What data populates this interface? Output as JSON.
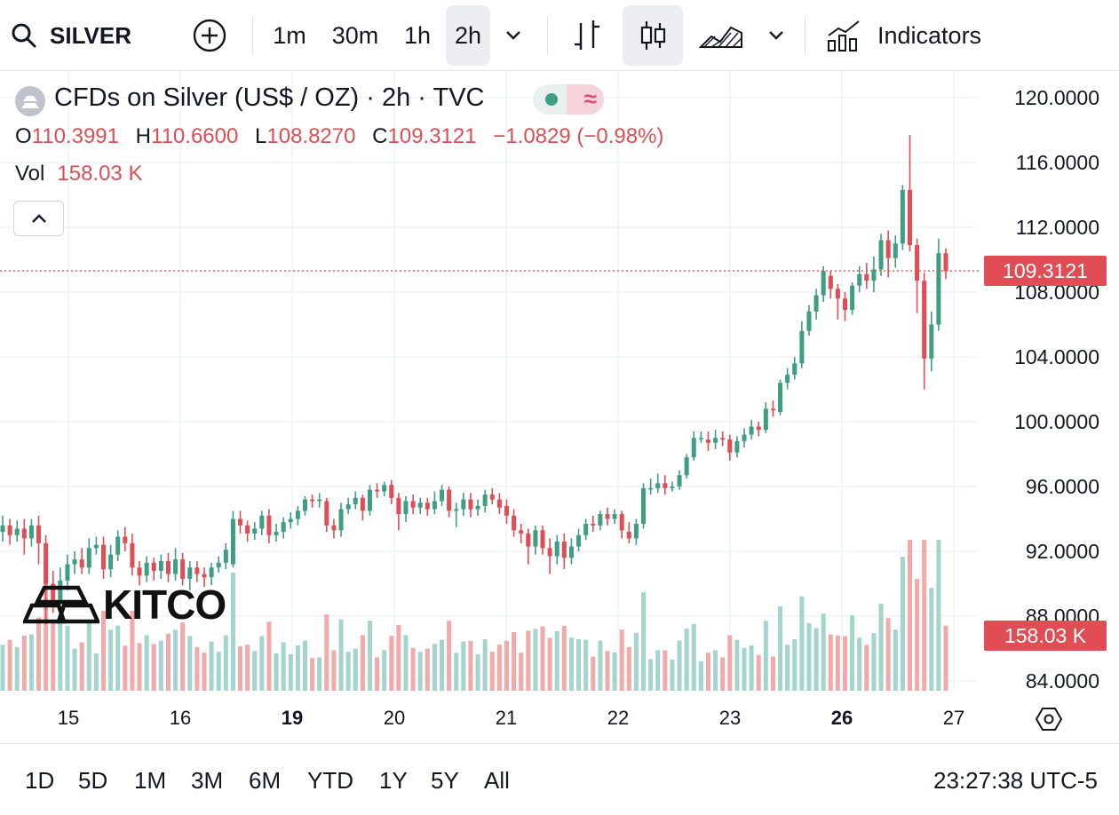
{
  "toolbar": {
    "symbol": "SILVER",
    "intervals": [
      "1m",
      "30m",
      "1h",
      "2h"
    ],
    "active_interval": "2h",
    "indicators_label": "Indicators"
  },
  "legend": {
    "title": "CFDs on Silver (US$ / OZ) · 2h · TVC",
    "open_label": "O",
    "open": "110.3991",
    "high_label": "H",
    "high": "110.6600",
    "low_label": "L",
    "low": "108.8270",
    "close_label": "C",
    "close": "109.3121",
    "change": "−1.0829 (−0.98%)",
    "vol_label": "Vol",
    "vol": "158.03 K"
  },
  "price_axis": {
    "labels": [
      "120.0000",
      "116.0000",
      "112.0000",
      "108.0000",
      "104.0000",
      "100.0000",
      "96.0000",
      "92.0000",
      "88.0000",
      "84.0000"
    ],
    "current_price": "109.3121",
    "current_volume": "158.03 K"
  },
  "time_axis": {
    "labels": [
      {
        "text": "15",
        "bold": false
      },
      {
        "text": "16",
        "bold": false
      },
      {
        "text": "19",
        "bold": true
      },
      {
        "text": "20",
        "bold": false
      },
      {
        "text": "21",
        "bold": false
      },
      {
        "text": "22",
        "bold": false
      },
      {
        "text": "23",
        "bold": false
      },
      {
        "text": "26",
        "bold": true
      },
      {
        "text": "27",
        "bold": false
      }
    ]
  },
  "watermark": "KITCO",
  "bottom_bar": {
    "ranges": [
      "1D",
      "5D",
      "1M",
      "3M",
      "6M",
      "YTD",
      "1Y",
      "5Y",
      "All"
    ],
    "clock": "23:27:38 UTC-5"
  },
  "colors": {
    "up": "#3e9d83",
    "down": "#e04d54",
    "up_vol": "#a3d5cc",
    "down_vol": "#f1a9a9"
  },
  "chart_data": {
    "type": "candlestick",
    "title": "CFDs on Silver (US$ / OZ) · 2h · TVC",
    "ylim": [
      83.5,
      121
    ],
    "x_ticks": [
      "15",
      "16",
      "19",
      "20",
      "21",
      "22",
      "23",
      "26",
      "27"
    ],
    "candles": [
      {
        "o": 93.2,
        "c": 93.6,
        "h": 94.2,
        "l": 92.6
      },
      {
        "o": 93.6,
        "c": 93.0,
        "h": 94.0,
        "l": 92.4
      },
      {
        "o": 93.0,
        "c": 93.4,
        "h": 93.9,
        "l": 92.6
      },
      {
        "o": 93.4,
        "c": 92.8,
        "h": 94.0,
        "l": 91.8
      },
      {
        "o": 92.8,
        "c": 93.6,
        "h": 94.0,
        "l": 92.3
      },
      {
        "o": 93.6,
        "c": 92.5,
        "h": 94.2,
        "l": 91.2
      },
      {
        "o": 92.5,
        "c": 90.0,
        "h": 93.0,
        "l": 87.5
      },
      {
        "o": 90.0,
        "c": 89.0,
        "h": 90.8,
        "l": 88.2
      },
      {
        "o": 89.0,
        "c": 90.2,
        "h": 91.0,
        "l": 88.5
      },
      {
        "o": 90.2,
        "c": 91.2,
        "h": 91.8,
        "l": 89.6
      },
      {
        "o": 91.2,
        "c": 91.5,
        "h": 92.0,
        "l": 90.6
      },
      {
        "o": 91.5,
        "c": 91.0,
        "h": 92.2,
        "l": 90.6
      },
      {
        "o": 91.0,
        "c": 92.2,
        "h": 92.8,
        "l": 90.6
      },
      {
        "o": 92.2,
        "c": 92.4,
        "h": 92.9,
        "l": 91.8
      },
      {
        "o": 92.4,
        "c": 90.9,
        "h": 92.9,
        "l": 90.3
      },
      {
        "o": 90.9,
        "c": 91.8,
        "h": 92.4,
        "l": 90.4
      },
      {
        "o": 91.8,
        "c": 92.9,
        "h": 93.3,
        "l": 91.4
      },
      {
        "o": 92.9,
        "c": 92.5,
        "h": 93.5,
        "l": 92.0
      },
      {
        "o": 92.5,
        "c": 91.0,
        "h": 93.1,
        "l": 90.5
      },
      {
        "o": 91.0,
        "c": 90.5,
        "h": 91.4,
        "l": 89.9
      },
      {
        "o": 90.5,
        "c": 91.3,
        "h": 91.7,
        "l": 90.1
      },
      {
        "o": 91.3,
        "c": 90.8,
        "h": 91.6,
        "l": 90.2
      },
      {
        "o": 90.8,
        "c": 91.4,
        "h": 91.8,
        "l": 90.3
      },
      {
        "o": 91.4,
        "c": 90.6,
        "h": 91.9,
        "l": 90.1
      },
      {
        "o": 90.6,
        "c": 91.5,
        "h": 92.2,
        "l": 90.2
      },
      {
        "o": 91.5,
        "c": 90.3,
        "h": 91.9,
        "l": 89.9
      },
      {
        "o": 90.3,
        "c": 91.0,
        "h": 91.4,
        "l": 89.6
      },
      {
        "o": 91.0,
        "c": 90.6,
        "h": 91.4,
        "l": 90.1
      },
      {
        "o": 90.6,
        "c": 90.4,
        "h": 91.0,
        "l": 89.8
      },
      {
        "o": 90.4,
        "c": 91.0,
        "h": 91.3,
        "l": 89.9
      },
      {
        "o": 91.0,
        "c": 91.3,
        "h": 91.7,
        "l": 90.7
      },
      {
        "o": 91.3,
        "c": 92.1,
        "h": 92.5,
        "l": 90.9
      },
      {
        "o": 91.2,
        "c": 94.0,
        "h": 94.5,
        "l": 91.0
      },
      {
        "o": 94.0,
        "c": 93.6,
        "h": 94.5,
        "l": 93.1
      },
      {
        "o": 93.6,
        "c": 93.1,
        "h": 93.9,
        "l": 92.6
      },
      {
        "o": 93.1,
        "c": 93.4,
        "h": 93.8,
        "l": 92.7
      },
      {
        "o": 93.4,
        "c": 94.2,
        "h": 94.5,
        "l": 93.0
      },
      {
        "o": 94.2,
        "c": 93.0,
        "h": 94.6,
        "l": 92.5
      },
      {
        "o": 93.0,
        "c": 93.2,
        "h": 93.7,
        "l": 92.6
      },
      {
        "o": 93.2,
        "c": 93.8,
        "h": 94.1,
        "l": 92.8
      },
      {
        "o": 93.8,
        "c": 94.0,
        "h": 94.4,
        "l": 93.4
      },
      {
        "o": 94.0,
        "c": 94.5,
        "h": 94.8,
        "l": 93.6
      },
      {
        "o": 94.5,
        "c": 95.2,
        "h": 95.4,
        "l": 94.2
      },
      {
        "o": 95.2,
        "c": 95.1,
        "h": 95.5,
        "l": 94.7
      },
      {
        "o": 95.1,
        "c": 95.2,
        "h": 95.6,
        "l": 94.7
      },
      {
        "o": 95.1,
        "c": 93.6,
        "h": 95.3,
        "l": 93.2
      },
      {
        "o": 93.6,
        "c": 93.3,
        "h": 94.0,
        "l": 92.8
      },
      {
        "o": 93.3,
        "c": 94.6,
        "h": 95.0,
        "l": 92.9
      },
      {
        "o": 94.6,
        "c": 94.9,
        "h": 95.3,
        "l": 94.3
      },
      {
        "o": 94.9,
        "c": 95.3,
        "h": 95.7,
        "l": 94.6
      },
      {
        "o": 95.3,
        "c": 94.5,
        "h": 95.5,
        "l": 93.9
      },
      {
        "o": 94.5,
        "c": 95.8,
        "h": 96.1,
        "l": 94.2
      },
      {
        "o": 95.8,
        "c": 95.7,
        "h": 96.2,
        "l": 95.3
      },
      {
        "o": 95.7,
        "c": 96.1,
        "h": 96.3,
        "l": 95.4
      },
      {
        "o": 96.1,
        "c": 95.3,
        "h": 96.4,
        "l": 94.9
      },
      {
        "o": 95.3,
        "c": 94.3,
        "h": 95.6,
        "l": 93.3
      },
      {
        "o": 94.3,
        "c": 95.1,
        "h": 95.4,
        "l": 93.8
      },
      {
        "o": 95.1,
        "c": 94.7,
        "h": 95.5,
        "l": 94.3
      },
      {
        "o": 94.7,
        "c": 95.0,
        "h": 95.3,
        "l": 94.3
      },
      {
        "o": 95.0,
        "c": 94.6,
        "h": 95.3,
        "l": 94.2
      },
      {
        "o": 94.6,
        "c": 95.1,
        "h": 95.7,
        "l": 94.3
      },
      {
        "o": 95.1,
        "c": 95.8,
        "h": 96.1,
        "l": 94.8
      },
      {
        "o": 95.8,
        "c": 94.5,
        "h": 96.0,
        "l": 94.1
      },
      {
        "o": 94.5,
        "c": 94.6,
        "h": 95.0,
        "l": 93.5
      },
      {
        "o": 94.6,
        "c": 95.2,
        "h": 95.6,
        "l": 94.2
      },
      {
        "o": 95.2,
        "c": 94.6,
        "h": 95.6,
        "l": 94.1
      },
      {
        "o": 94.6,
        "c": 94.8,
        "h": 95.2,
        "l": 94.2
      },
      {
        "o": 94.8,
        "c": 95.5,
        "h": 95.8,
        "l": 94.4
      },
      {
        "o": 95.5,
        "c": 95.2,
        "h": 95.9,
        "l": 94.9
      },
      {
        "o": 95.2,
        "c": 94.7,
        "h": 95.6,
        "l": 94.3
      },
      {
        "o": 94.8,
        "c": 94.2,
        "h": 95.2,
        "l": 93.7
      },
      {
        "o": 94.2,
        "c": 93.3,
        "h": 94.6,
        "l": 92.9
      },
      {
        "o": 93.3,
        "c": 93.1,
        "h": 93.7,
        "l": 92.5
      },
      {
        "o": 93.1,
        "c": 92.3,
        "h": 93.4,
        "l": 91.2
      },
      {
        "o": 92.3,
        "c": 93.3,
        "h": 93.6,
        "l": 91.8
      },
      {
        "o": 93.3,
        "c": 92.2,
        "h": 93.6,
        "l": 91.8
      },
      {
        "o": 92.2,
        "c": 91.7,
        "h": 92.8,
        "l": 90.6
      },
      {
        "o": 91.7,
        "c": 92.6,
        "h": 93.0,
        "l": 91.2
      },
      {
        "o": 92.6,
        "c": 91.6,
        "h": 93.1,
        "l": 90.9
      },
      {
        "o": 91.6,
        "c": 92.3,
        "h": 92.8,
        "l": 91.2
      },
      {
        "o": 92.3,
        "c": 93.0,
        "h": 93.4,
        "l": 92.0
      },
      {
        "o": 93.0,
        "c": 93.7,
        "h": 94.0,
        "l": 92.7
      },
      {
        "o": 93.7,
        "c": 93.6,
        "h": 94.2,
        "l": 93.2
      },
      {
        "o": 93.6,
        "c": 94.3,
        "h": 94.5,
        "l": 93.3
      },
      {
        "o": 94.3,
        "c": 94.0,
        "h": 94.7,
        "l": 93.6
      },
      {
        "o": 94.0,
        "c": 94.3,
        "h": 94.6,
        "l": 93.7
      },
      {
        "o": 94.3,
        "c": 93.3,
        "h": 94.5,
        "l": 92.8
      },
      {
        "o": 93.2,
        "c": 92.8,
        "h": 93.8,
        "l": 92.5
      },
      {
        "o": 92.8,
        "c": 93.7,
        "h": 94.0,
        "l": 92.4
      },
      {
        "o": 93.7,
        "c": 95.9,
        "h": 96.2,
        "l": 93.4
      },
      {
        "o": 95.9,
        "c": 95.9,
        "h": 96.5,
        "l": 95.5
      },
      {
        "o": 95.9,
        "c": 96.2,
        "h": 96.8,
        "l": 95.6
      },
      {
        "o": 96.2,
        "c": 95.9,
        "h": 96.7,
        "l": 95.5
      },
      {
        "o": 95.9,
        "c": 96.0,
        "h": 96.3,
        "l": 95.7
      },
      {
        "o": 96.0,
        "c": 96.7,
        "h": 97.0,
        "l": 95.8
      },
      {
        "o": 96.7,
        "c": 97.8,
        "h": 98.0,
        "l": 96.5
      },
      {
        "o": 97.8,
        "c": 99.0,
        "h": 99.4,
        "l": 97.6
      },
      {
        "o": 99.0,
        "c": 99.0,
        "h": 99.4,
        "l": 98.7
      },
      {
        "o": 98.9,
        "c": 98.7,
        "h": 99.4,
        "l": 98.2
      },
      {
        "o": 98.7,
        "c": 99.0,
        "h": 99.5,
        "l": 98.3
      },
      {
        "o": 99.0,
        "c": 98.9,
        "h": 99.4,
        "l": 98.5
      },
      {
        "o": 98.9,
        "c": 98.1,
        "h": 99.2,
        "l": 97.6
      },
      {
        "o": 98.1,
        "c": 98.8,
        "h": 99.1,
        "l": 97.8
      },
      {
        "o": 98.8,
        "c": 99.2,
        "h": 99.6,
        "l": 98.4
      },
      {
        "o": 99.2,
        "c": 99.7,
        "h": 100.1,
        "l": 98.9
      },
      {
        "o": 99.7,
        "c": 99.5,
        "h": 100.0,
        "l": 99.1
      },
      {
        "o": 99.5,
        "c": 100.8,
        "h": 101.2,
        "l": 99.3
      },
      {
        "o": 100.8,
        "c": 100.7,
        "h": 101.3,
        "l": 100.3
      },
      {
        "o": 100.6,
        "c": 102.4,
        "h": 102.6,
        "l": 100.4
      },
      {
        "o": 102.4,
        "c": 102.9,
        "h": 103.3,
        "l": 102.0
      },
      {
        "o": 102.9,
        "c": 103.6,
        "h": 104.0,
        "l": 102.6
      },
      {
        "o": 103.6,
        "c": 105.6,
        "h": 106.2,
        "l": 103.3
      },
      {
        "o": 105.6,
        "c": 106.8,
        "h": 107.2,
        "l": 105.3
      },
      {
        "o": 106.8,
        "c": 107.8,
        "h": 108.2,
        "l": 106.3
      },
      {
        "o": 107.8,
        "c": 109.3,
        "h": 109.6,
        "l": 107.4
      },
      {
        "o": 109.0,
        "c": 108.2,
        "h": 109.3,
        "l": 107.6
      },
      {
        "o": 108.2,
        "c": 107.6,
        "h": 108.5,
        "l": 106.3
      },
      {
        "o": 107.6,
        "c": 106.9,
        "h": 108.0,
        "l": 106.2
      },
      {
        "o": 106.9,
        "c": 108.4,
        "h": 108.6,
        "l": 106.6
      },
      {
        "o": 108.4,
        "c": 109.1,
        "h": 109.6,
        "l": 108.0
      },
      {
        "o": 109.1,
        "c": 108.7,
        "h": 109.8,
        "l": 108.2
      },
      {
        "o": 108.7,
        "c": 109.4,
        "h": 110.2,
        "l": 108.0
      },
      {
        "o": 109.4,
        "c": 111.2,
        "h": 111.6,
        "l": 109.0
      },
      {
        "o": 111.2,
        "c": 110.1,
        "h": 111.8,
        "l": 108.9
      },
      {
        "o": 110.1,
        "c": 111.0,
        "h": 111.5,
        "l": 109.5
      },
      {
        "o": 111.0,
        "c": 114.3,
        "h": 114.6,
        "l": 110.6
      },
      {
        "o": 114.3,
        "c": 110.9,
        "h": 117.7,
        "l": 110.5
      },
      {
        "o": 110.9,
        "c": 108.7,
        "h": 111.3,
        "l": 106.7
      },
      {
        "o": 108.7,
        "c": 103.9,
        "h": 109.2,
        "l": 102.0
      },
      {
        "o": 103.9,
        "c": 106.0,
        "h": 106.8,
        "l": 103.1
      },
      {
        "o": 106.0,
        "c": 110.4,
        "h": 111.3,
        "l": 105.6
      },
      {
        "o": 110.4,
        "c": 109.3,
        "h": 110.7,
        "l": 108.8
      }
    ]
  }
}
